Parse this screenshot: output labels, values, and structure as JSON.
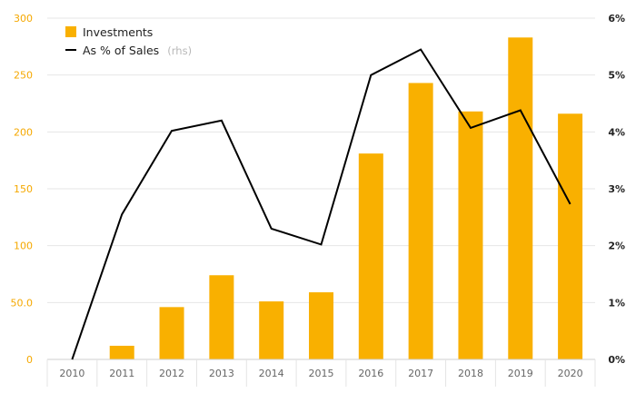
{
  "chart_data": {
    "type": "bar",
    "categories": [
      "2010",
      "2011",
      "2012",
      "2013",
      "2014",
      "2015",
      "2016",
      "2017",
      "2018",
      "2019",
      "2020"
    ],
    "series": [
      {
        "name": "Investments",
        "type": "bar",
        "axis": "left",
        "color": "#f9b000",
        "values": [
          0,
          12,
          46,
          74,
          51,
          59,
          181,
          243,
          218,
          283,
          216
        ]
      },
      {
        "name": "As % of Sales",
        "name_suffix": "(rhs)",
        "type": "line",
        "axis": "right",
        "color": "#000000",
        "values": [
          0.0,
          2.55,
          4.02,
          4.2,
          2.3,
          2.02,
          5.0,
          5.45,
          4.07,
          4.38,
          2.73
        ]
      }
    ],
    "y_left": {
      "ylim": [
        0,
        300
      ],
      "ticks": [
        0,
        50,
        100,
        150,
        200,
        250,
        300
      ],
      "tick_labels": [
        "0",
        "50.0",
        "100",
        "150",
        "200",
        "250",
        "300"
      ]
    },
    "y_right": {
      "ylim": [
        0,
        6
      ],
      "ticks": [
        0,
        1,
        2,
        3,
        4,
        5,
        6
      ],
      "tick_labels": [
        "0%",
        "1%",
        "2%",
        "3%",
        "4%",
        "5%",
        "6%"
      ]
    },
    "grid": true,
    "legend_position": "top-left"
  }
}
